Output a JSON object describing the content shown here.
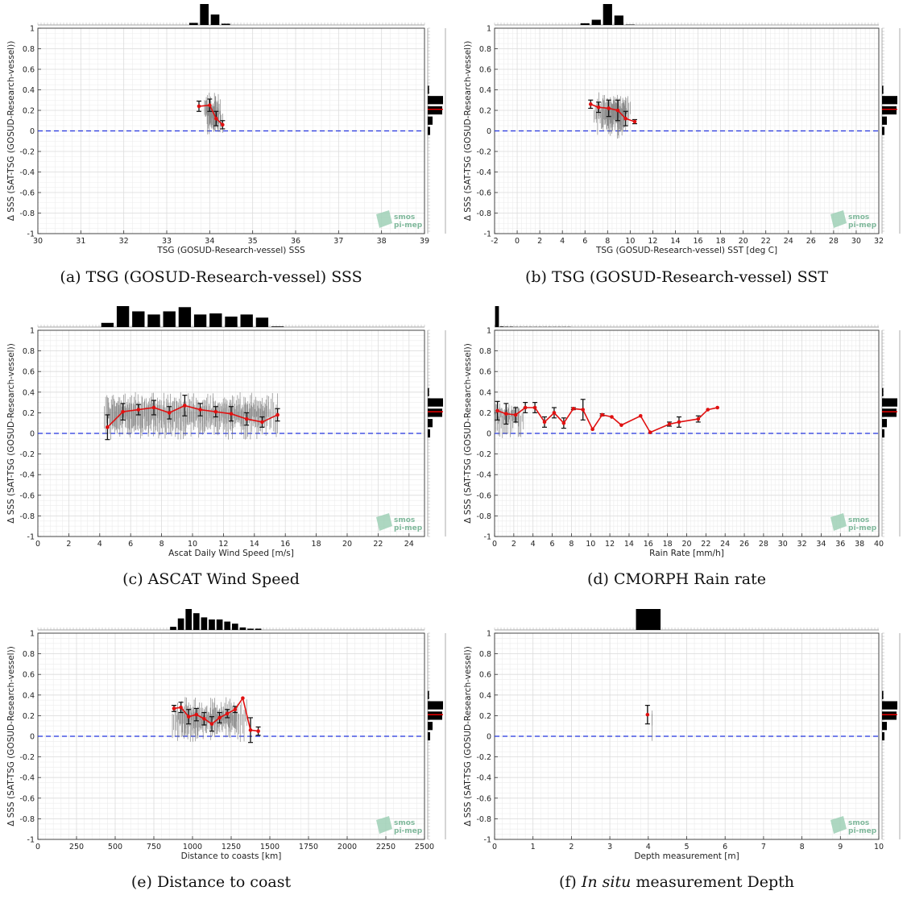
{
  "logo": {
    "line1": "smos",
    "line2": "pi-mep"
  },
  "chart_data": [
    {
      "type": "line",
      "caption": "(a) TSG (GOSUD-Research-vessel) SSS",
      "xlabel": "TSG (GOSUD-Research-vessel) SSS",
      "ylabel": "Δ SSS (SAT-TSG (GOSUD-Research-vessel))",
      "xlim": [
        30,
        39
      ],
      "ylim": [
        -1,
        1
      ],
      "xticks": [
        30,
        31,
        32,
        33,
        34,
        35,
        36,
        37,
        38,
        39
      ],
      "xtick_labels": [
        "30",
        "31",
        "32",
        "33",
        "34",
        "35",
        "36",
        "37",
        "38",
        "39"
      ],
      "yticks": [
        -1,
        -0.8,
        -0.6,
        -0.4,
        -0.2,
        0,
        0.2,
        0.4,
        0.6,
        0.8,
        1
      ],
      "ytick_labels": [
        "-1",
        "-0.8",
        "-0.6",
        "-0.4",
        "-0.2",
        "0",
        "0.2",
        "0.4",
        "0.6",
        "0.8",
        "1"
      ],
      "mean_curve": {
        "x": [
          33.75,
          34.0,
          34.15,
          34.3
        ],
        "y": [
          0.24,
          0.25,
          0.12,
          0.06
        ],
        "err": [
          0.05,
          0.06,
          0.07,
          0.04
        ]
      },
      "scatter_segments": [
        [
          33.9,
          34.2,
          0.38,
          0.0
        ],
        [
          33.95,
          34.2,
          0.32,
          -0.05
        ],
        [
          33.88,
          34.12,
          0.3,
          0.02
        ],
        [
          34.0,
          34.3,
          0.25,
          -0.04
        ],
        [
          33.92,
          34.25,
          0.35,
          -0.02
        ]
      ],
      "top_hist": {
        "bins": [
          33.5,
          33.75,
          34.0,
          34.25,
          34.5
        ],
        "values": [
          0.1,
          1.0,
          0.5,
          0.06
        ]
      },
      "right_hist": {
        "bins": [
          -0.05,
          0.05,
          0.15,
          0.25,
          0.35,
          0.45
        ],
        "values": [
          0.15,
          0.3,
          0.9,
          0.95,
          0.08
        ]
      },
      "zero_line": 0,
      "median_line": 0.21
    },
    {
      "type": "line",
      "caption": "(b) TSG (GOSUD-Research-vessel) SST",
      "xlabel": "TSG (GOSUD-Research-vessel) SST [deg C]",
      "ylabel": "Δ SSS (SAT-TSG (GOSUD-Research-vessel))",
      "xlim": [
        -2,
        32
      ],
      "ylim": [
        -1,
        1
      ],
      "xticks": [
        -2,
        0,
        2,
        4,
        6,
        8,
        10,
        12,
        14,
        16,
        18,
        20,
        22,
        24,
        26,
        28,
        30,
        32
      ],
      "xtick_labels": [
        "-2",
        "0",
        "2",
        "4",
        "6",
        "8",
        "10",
        "12",
        "14",
        "16",
        "18",
        "20",
        "22",
        "24",
        "26",
        "28",
        "30",
        "32"
      ],
      "yticks": [
        -1,
        -0.8,
        -0.6,
        -0.4,
        -0.2,
        0,
        0.2,
        0.4,
        0.6,
        0.8,
        1
      ],
      "ytick_labels": [
        "-1",
        "-0.8",
        "-0.6",
        "-0.4",
        "-0.2",
        "0",
        "0.2",
        "0.4",
        "0.6",
        "0.8",
        "1"
      ],
      "mean_curve": {
        "x": [
          6.5,
          7.2,
          8.1,
          8.9,
          9.6,
          10.4
        ],
        "y": [
          0.26,
          0.23,
          0.22,
          0.2,
          0.12,
          0.09
        ],
        "err": [
          0.04,
          0.05,
          0.08,
          0.1,
          0.07,
          0.02
        ]
      },
      "scatter_segments": [
        [
          7.0,
          9.5,
          0.38,
          -0.05
        ],
        [
          7.5,
          9.8,
          0.35,
          0.0
        ],
        [
          8.0,
          9.2,
          0.3,
          -0.08
        ],
        [
          6.8,
          8.5,
          0.28,
          0.05
        ],
        [
          7.8,
          9.6,
          0.34,
          -0.02
        ],
        [
          8.5,
          10.0,
          0.3,
          0.05
        ]
      ],
      "top_hist": {
        "bins": [
          5.5,
          6.5,
          7.5,
          8.5,
          9.5,
          10.5
        ],
        "values": [
          0.08,
          0.25,
          1.0,
          0.45,
          0.02
        ]
      },
      "right_hist": {
        "bins": [
          -0.05,
          0.05,
          0.15,
          0.25,
          0.35,
          0.45
        ],
        "values": [
          0.15,
          0.3,
          0.9,
          0.95,
          0.08
        ]
      },
      "zero_line": 0,
      "median_line": 0.21
    },
    {
      "type": "line",
      "caption": "(c) ASCAT Wind Speed",
      "xlabel": "Ascat Daily Wind Speed [m/s]",
      "ylabel": "Δ SSS (SAT-TSG (GOSUD-Research-vessel))",
      "xlim": [
        0,
        25
      ],
      "ylim": [
        -1,
        1
      ],
      "xticks": [
        0,
        2,
        4,
        6,
        8,
        10,
        12,
        14,
        16,
        18,
        20,
        22,
        24
      ],
      "xtick_labels": [
        "0",
        "2",
        "4",
        "6",
        "8",
        "10",
        "12",
        "14",
        "16",
        "18",
        "20",
        "22",
        "24"
      ],
      "yticks": [
        -1,
        -0.8,
        -0.6,
        -0.4,
        -0.2,
        0,
        0.2,
        0.4,
        0.6,
        0.8,
        1
      ],
      "ytick_labels": [
        "-1",
        "-0.8",
        "-0.6",
        "-0.4",
        "-0.2",
        "0",
        "0.2",
        "0.4",
        "0.6",
        "0.8",
        "1"
      ],
      "mean_curve": {
        "x": [
          4.5,
          5.5,
          6.5,
          7.5,
          8.5,
          9.5,
          10.5,
          11.5,
          12.5,
          13.5,
          14.5,
          15.5
        ],
        "y": [
          0.06,
          0.21,
          0.23,
          0.25,
          0.2,
          0.27,
          0.23,
          0.21,
          0.19,
          0.14,
          0.11,
          0.18
        ],
        "err": [
          0.12,
          0.08,
          0.05,
          0.07,
          0.06,
          0.1,
          0.06,
          0.05,
          0.07,
          0.06,
          0.05,
          0.06
        ]
      },
      "scatter_segments": [
        [
          4.3,
          15.5,
          0.4,
          -0.06
        ],
        [
          4.5,
          15.0,
          0.35,
          0.0
        ],
        [
          5.0,
          14.8,
          0.3,
          0.05
        ]
      ],
      "top_hist": {
        "bins": [
          4,
          5,
          6,
          7,
          8,
          9,
          10,
          11,
          12,
          13,
          14,
          15,
          16
        ],
        "values": [
          0.2,
          1.0,
          0.75,
          0.6,
          0.75,
          0.95,
          0.6,
          0.65,
          0.5,
          0.6,
          0.45,
          0.03
        ]
      },
      "right_hist": {
        "bins": [
          -0.05,
          0.05,
          0.15,
          0.25,
          0.35,
          0.45
        ],
        "values": [
          0.15,
          0.3,
          0.9,
          0.95,
          0.08
        ]
      },
      "zero_line": 0,
      "median_line": 0.21
    },
    {
      "type": "line",
      "caption": "(d) CMORPH Rain rate",
      "xlabel": "Rain Rate [mm/h]",
      "ylabel": "Δ SSS (SAT-TSG (GOSUD-Research-vessel))",
      "xlim": [
        0,
        40
      ],
      "ylim": [
        -1,
        1
      ],
      "xticks": [
        0,
        2,
        4,
        6,
        8,
        10,
        12,
        14,
        16,
        18,
        20,
        22,
        24,
        26,
        28,
        30,
        32,
        34,
        36,
        38,
        40
      ],
      "xtick_labels": [
        "0",
        "2",
        "4",
        "6",
        "8",
        "10",
        "12",
        "14",
        "16",
        "18",
        "20",
        "22",
        "24",
        "26",
        "28",
        "30",
        "32",
        "34",
        "36",
        "38",
        "40"
      ],
      "yticks": [
        -1,
        -0.8,
        -0.6,
        -0.4,
        -0.2,
        0,
        0.2,
        0.4,
        0.6,
        0.8,
        1
      ],
      "ytick_labels": [
        "-1",
        "-0.8",
        "-0.6",
        "-0.4",
        "-0.2",
        "0",
        "0.2",
        "0.4",
        "0.6",
        "0.8",
        "1"
      ],
      "mean_curve": {
        "x": [
          0.3,
          1.2,
          2.2,
          3.2,
          4.2,
          5.2,
          6.2,
          7.2,
          8.2,
          9.2,
          10.2,
          11.2,
          12.2,
          13.2,
          15.2,
          16.2,
          18.2,
          19.2,
          21.2,
          22.2,
          23.2
        ],
        "y": [
          0.22,
          0.19,
          0.18,
          0.25,
          0.25,
          0.11,
          0.2,
          0.1,
          0.24,
          0.23,
          0.04,
          0.18,
          0.16,
          0.08,
          0.17,
          0.01,
          0.09,
          0.11,
          0.14,
          0.23,
          0.25
        ],
        "err": [
          0.09,
          0.1,
          0.07,
          0.05,
          0.05,
          0.05,
          0.05,
          0.05,
          0.01,
          0.1,
          0.0,
          0.01,
          0.0,
          0.0,
          0.0,
          0.0,
          0.02,
          0.05,
          0.03,
          0.0,
          0.0
        ]
      },
      "scatter_segments": [
        [
          0.0,
          3.0,
          0.3,
          -0.06
        ],
        [
          0.1,
          2.5,
          0.28,
          0.05
        ]
      ],
      "top_hist": {
        "bins": [
          0,
          0.5,
          1,
          1.5,
          2,
          2.5,
          3,
          3.5,
          4,
          4.5,
          5,
          5.5,
          6,
          6.5,
          7,
          7.5,
          8
        ],
        "values": [
          1.0,
          0.03,
          0.02,
          0.02,
          0.01,
          0.01,
          0.01,
          0.01,
          0.01,
          0.01,
          0.01,
          0.01,
          0.01,
          0.01,
          0.01,
          0.01
        ]
      },
      "right_hist": {
        "bins": [
          -0.05,
          0.05,
          0.15,
          0.25,
          0.35,
          0.45
        ],
        "values": [
          0.15,
          0.3,
          0.9,
          0.95,
          0.08
        ]
      },
      "zero_line": 0,
      "median_line": 0.21
    },
    {
      "type": "line",
      "caption": "(e) Distance to coast",
      "xlabel": "Distance to coasts [km]",
      "ylabel": "Δ SSS (SAT-TSG (GOSUD-Research-vessel))",
      "xlim": [
        0,
        2500
      ],
      "ylim": [
        -1,
        1
      ],
      "xticks": [
        0,
        250,
        500,
        750,
        1000,
        1250,
        1500,
        1750,
        2000,
        2250,
        2500
      ],
      "xtick_labels": [
        "0",
        "250",
        "500",
        "750",
        "1000",
        "1250",
        "1500",
        "1750",
        "2000",
        "2250",
        "2500"
      ],
      "yticks": [
        -1,
        -0.8,
        -0.6,
        -0.4,
        -0.2,
        0,
        0.2,
        0.4,
        0.6,
        0.8,
        1
      ],
      "ytick_labels": [
        "-1",
        "-0.8",
        "-0.6",
        "-0.4",
        "-0.2",
        "0",
        "0.2",
        "0.4",
        "0.6",
        "0.8",
        "1"
      ],
      "mean_curve": {
        "x": [
          880,
          925,
          975,
          1025,
          1075,
          1125,
          1175,
          1225,
          1275,
          1325,
          1375,
          1425
        ],
        "y": [
          0.27,
          0.28,
          0.19,
          0.21,
          0.17,
          0.12,
          0.18,
          0.22,
          0.26,
          0.37,
          0.06,
          0.05
        ],
        "err": [
          0.03,
          0.05,
          0.07,
          0.06,
          0.06,
          0.07,
          0.05,
          0.04,
          0.03,
          0.0,
          0.12,
          0.04
        ]
      },
      "scatter_segments": [
        [
          870,
          1350,
          0.38,
          -0.06
        ],
        [
          900,
          1300,
          0.33,
          0.0
        ],
        [
          950,
          1280,
          0.28,
          0.05
        ]
      ],
      "top_hist": {
        "bins": [
          850,
          900,
          950,
          1000,
          1050,
          1100,
          1150,
          1200,
          1250,
          1300,
          1350,
          1400,
          1450
        ],
        "values": [
          0.15,
          0.55,
          1.0,
          0.8,
          0.6,
          0.5,
          0.5,
          0.4,
          0.3,
          0.12,
          0.06,
          0.06
        ]
      },
      "right_hist": {
        "bins": [
          -0.05,
          0.05,
          0.15,
          0.25,
          0.35,
          0.45
        ],
        "values": [
          0.15,
          0.3,
          0.9,
          0.95,
          0.08
        ]
      },
      "zero_line": 0,
      "median_line": 0.21
    },
    {
      "type": "line",
      "caption_pre": "(f) ",
      "caption_em": "In situ",
      "caption_post": " measurement Depth",
      "xlabel": "Depth measurement [m]",
      "ylabel": "Δ SSS (SAT-TSG (GOSUD-Research-vessel))",
      "xlim": [
        0,
        10
      ],
      "ylim": [
        -1,
        1
      ],
      "xticks": [
        0,
        1,
        2,
        3,
        4,
        5,
        6,
        7,
        8,
        9,
        10
      ],
      "xtick_labels": [
        "0",
        "1",
        "2",
        "3",
        "4",
        "5",
        "6",
        "7",
        "8",
        "9",
        "10"
      ],
      "yticks": [
        -1,
        -0.8,
        -0.6,
        -0.4,
        -0.2,
        0,
        0.2,
        0.4,
        0.6,
        0.8,
        1
      ],
      "ytick_labels": [
        "-1",
        "-0.8",
        "-0.6",
        "-0.4",
        "-0.2",
        "0",
        "0.2",
        "0.4",
        "0.6",
        "0.8",
        "1"
      ],
      "mean_curve": {
        "x": [
          3.98
        ],
        "y": [
          0.21
        ],
        "err": [
          0.09
        ]
      },
      "scatter_segments": [
        [
          4.1,
          4.1,
          0.4,
          -0.06
        ]
      ],
      "top_hist": {
        "bins": [
          3.6,
          4.4
        ],
        "values": [
          1.0
        ]
      },
      "right_hist": {
        "bins": [
          -0.05,
          0.05,
          0.15,
          0.25,
          0.35,
          0.45
        ],
        "values": [
          0.15,
          0.3,
          0.9,
          0.95,
          0.08
        ]
      },
      "zero_line": 0,
      "median_line": 0.21
    }
  ]
}
